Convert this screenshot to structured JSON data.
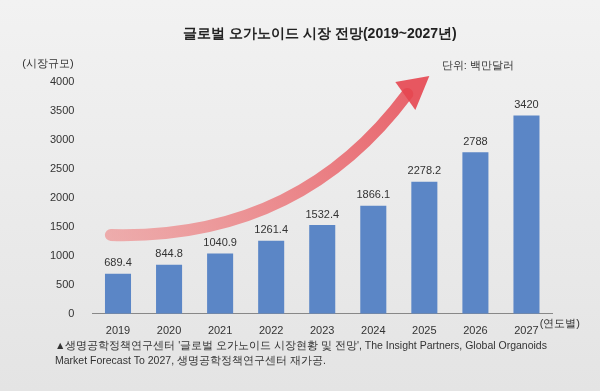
{
  "chart_data": {
    "type": "bar",
    "title": "글로벌 오가노이드 시장 전망(2019~2027년)",
    "y_label": "(시장규모)",
    "x_label": "(연도별)",
    "unit": "단위: 백만달러",
    "source": "▲생명공학정책연구센터 '글로벌 오가노이드 시장현황 및 전망', The Insight Partners, Global Organoids Market Forecast To 2027, 생명공학정책연구센터 재가공.",
    "categories": [
      "2019",
      "2020",
      "2021",
      "2022",
      "2023",
      "2024",
      "2025",
      "2026",
      "2027"
    ],
    "values": [
      689.4,
      844.8,
      1040.9,
      1261.4,
      1532.4,
      1866.1,
      2278.2,
      2788,
      3420
    ],
    "color": "#5b86c6",
    "ylim": [
      0,
      4000
    ],
    "yticks": [
      0,
      500,
      1000,
      1500,
      2000,
      2500,
      3000,
      3500,
      4000
    ],
    "grid": false,
    "data_labels": true
  }
}
